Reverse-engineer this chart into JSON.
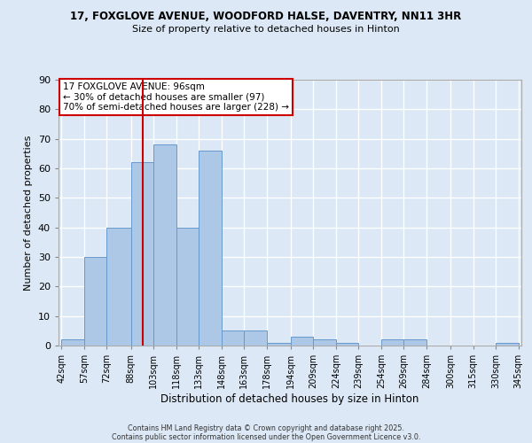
{
  "title": "17, FOXGLOVE AVENUE, WOODFORD HALSE, DAVENTRY, NN11 3HR",
  "subtitle": "Size of property relative to detached houses in Hinton",
  "xlabel": "Distribution of detached houses by size in Hinton",
  "ylabel": "Number of detached properties",
  "bar_values": [
    2,
    30,
    40,
    62,
    68,
    40,
    66,
    5,
    5,
    1,
    3,
    2,
    1,
    0,
    2,
    2,
    0,
    0,
    0,
    1
  ],
  "bin_labels": [
    "42sqm",
    "57sqm",
    "72sqm",
    "88sqm",
    "103sqm",
    "118sqm",
    "133sqm",
    "148sqm",
    "163sqm",
    "178sqm",
    "194sqm",
    "209sqm",
    "224sqm",
    "239sqm",
    "254sqm",
    "269sqm",
    "284sqm",
    "300sqm",
    "315sqm",
    "330sqm",
    "345sqm"
  ],
  "bin_edges": [
    42,
    57,
    72,
    88,
    103,
    118,
    133,
    148,
    163,
    178,
    194,
    209,
    224,
    239,
    254,
    269,
    284,
    300,
    315,
    330,
    345
  ],
  "bar_color": "#adc8e6",
  "bar_edge_color": "#6699cc",
  "background_color": "#dce8f5",
  "grid_color": "#ffffff",
  "vline_x": 96,
  "vline_color": "#cc0000",
  "annotation_title": "17 FOXGLOVE AVENUE: 96sqm",
  "annotation_line1": "← 30% of detached houses are smaller (97)",
  "annotation_line2": "70% of semi-detached houses are larger (228) →",
  "annotation_box_color": "#ffffff",
  "annotation_box_edge": "#cc0000",
  "ylim": [
    0,
    90
  ],
  "yticks": [
    0,
    10,
    20,
    30,
    40,
    50,
    60,
    70,
    80,
    90
  ],
  "footer1": "Contains HM Land Registry data © Crown copyright and database right 2025.",
  "footer2": "Contains public sector information licensed under the Open Government Licence v3.0."
}
